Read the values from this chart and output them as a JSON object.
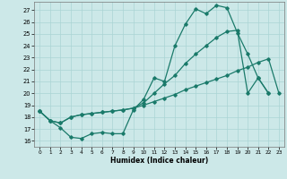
{
  "xlabel": "Humidex (Indice chaleur)",
  "bg_color": "#cce8e8",
  "grid_color": "#aad4d4",
  "line_color": "#1a7a6a",
  "xlim": [
    -0.5,
    23.5
  ],
  "ylim": [
    15.5,
    27.7
  ],
  "xticks": [
    0,
    1,
    2,
    3,
    4,
    5,
    6,
    7,
    8,
    9,
    10,
    11,
    12,
    13,
    14,
    15,
    16,
    17,
    18,
    19,
    20,
    21,
    22,
    23
  ],
  "yticks": [
    16,
    17,
    18,
    19,
    20,
    21,
    22,
    23,
    24,
    25,
    26,
    27
  ],
  "line1_x": [
    0,
    1,
    2,
    3,
    4,
    5,
    6,
    7,
    8,
    9,
    10,
    11,
    12,
    13,
    14,
    15,
    16,
    17,
    18,
    19,
    20,
    21,
    22
  ],
  "line1_y": [
    18.5,
    17.7,
    17.1,
    16.3,
    16.2,
    16.6,
    16.7,
    16.6,
    16.6,
    18.6,
    19.5,
    21.3,
    21.0,
    24.0,
    25.8,
    27.1,
    26.7,
    27.4,
    27.2,
    25.1,
    23.3,
    21.3,
    20.0
  ],
  "line2_x": [
    0,
    1,
    2,
    3,
    4,
    5,
    6,
    7,
    8,
    9,
    10,
    11,
    12,
    13,
    14,
    15,
    16,
    17,
    18,
    19,
    20,
    21,
    22,
    23
  ],
  "line2_y": [
    18.5,
    17.7,
    17.5,
    18.0,
    18.2,
    18.3,
    18.4,
    18.5,
    18.6,
    18.75,
    19.0,
    19.3,
    19.6,
    19.9,
    20.3,
    20.6,
    20.9,
    21.2,
    21.5,
    21.9,
    22.2,
    22.6,
    22.9,
    20.0
  ],
  "line3_x": [
    0,
    1,
    2,
    3,
    4,
    5,
    6,
    7,
    8,
    9,
    10,
    11,
    12,
    13,
    14,
    15,
    16,
    17,
    18,
    19,
    20,
    21,
    22
  ],
  "line3_y": [
    18.5,
    17.7,
    17.5,
    18.0,
    18.2,
    18.3,
    18.4,
    18.5,
    18.6,
    18.75,
    19.2,
    20.0,
    20.8,
    21.5,
    22.5,
    23.3,
    24.0,
    24.7,
    25.2,
    25.3,
    20.0,
    21.3,
    20.0
  ]
}
